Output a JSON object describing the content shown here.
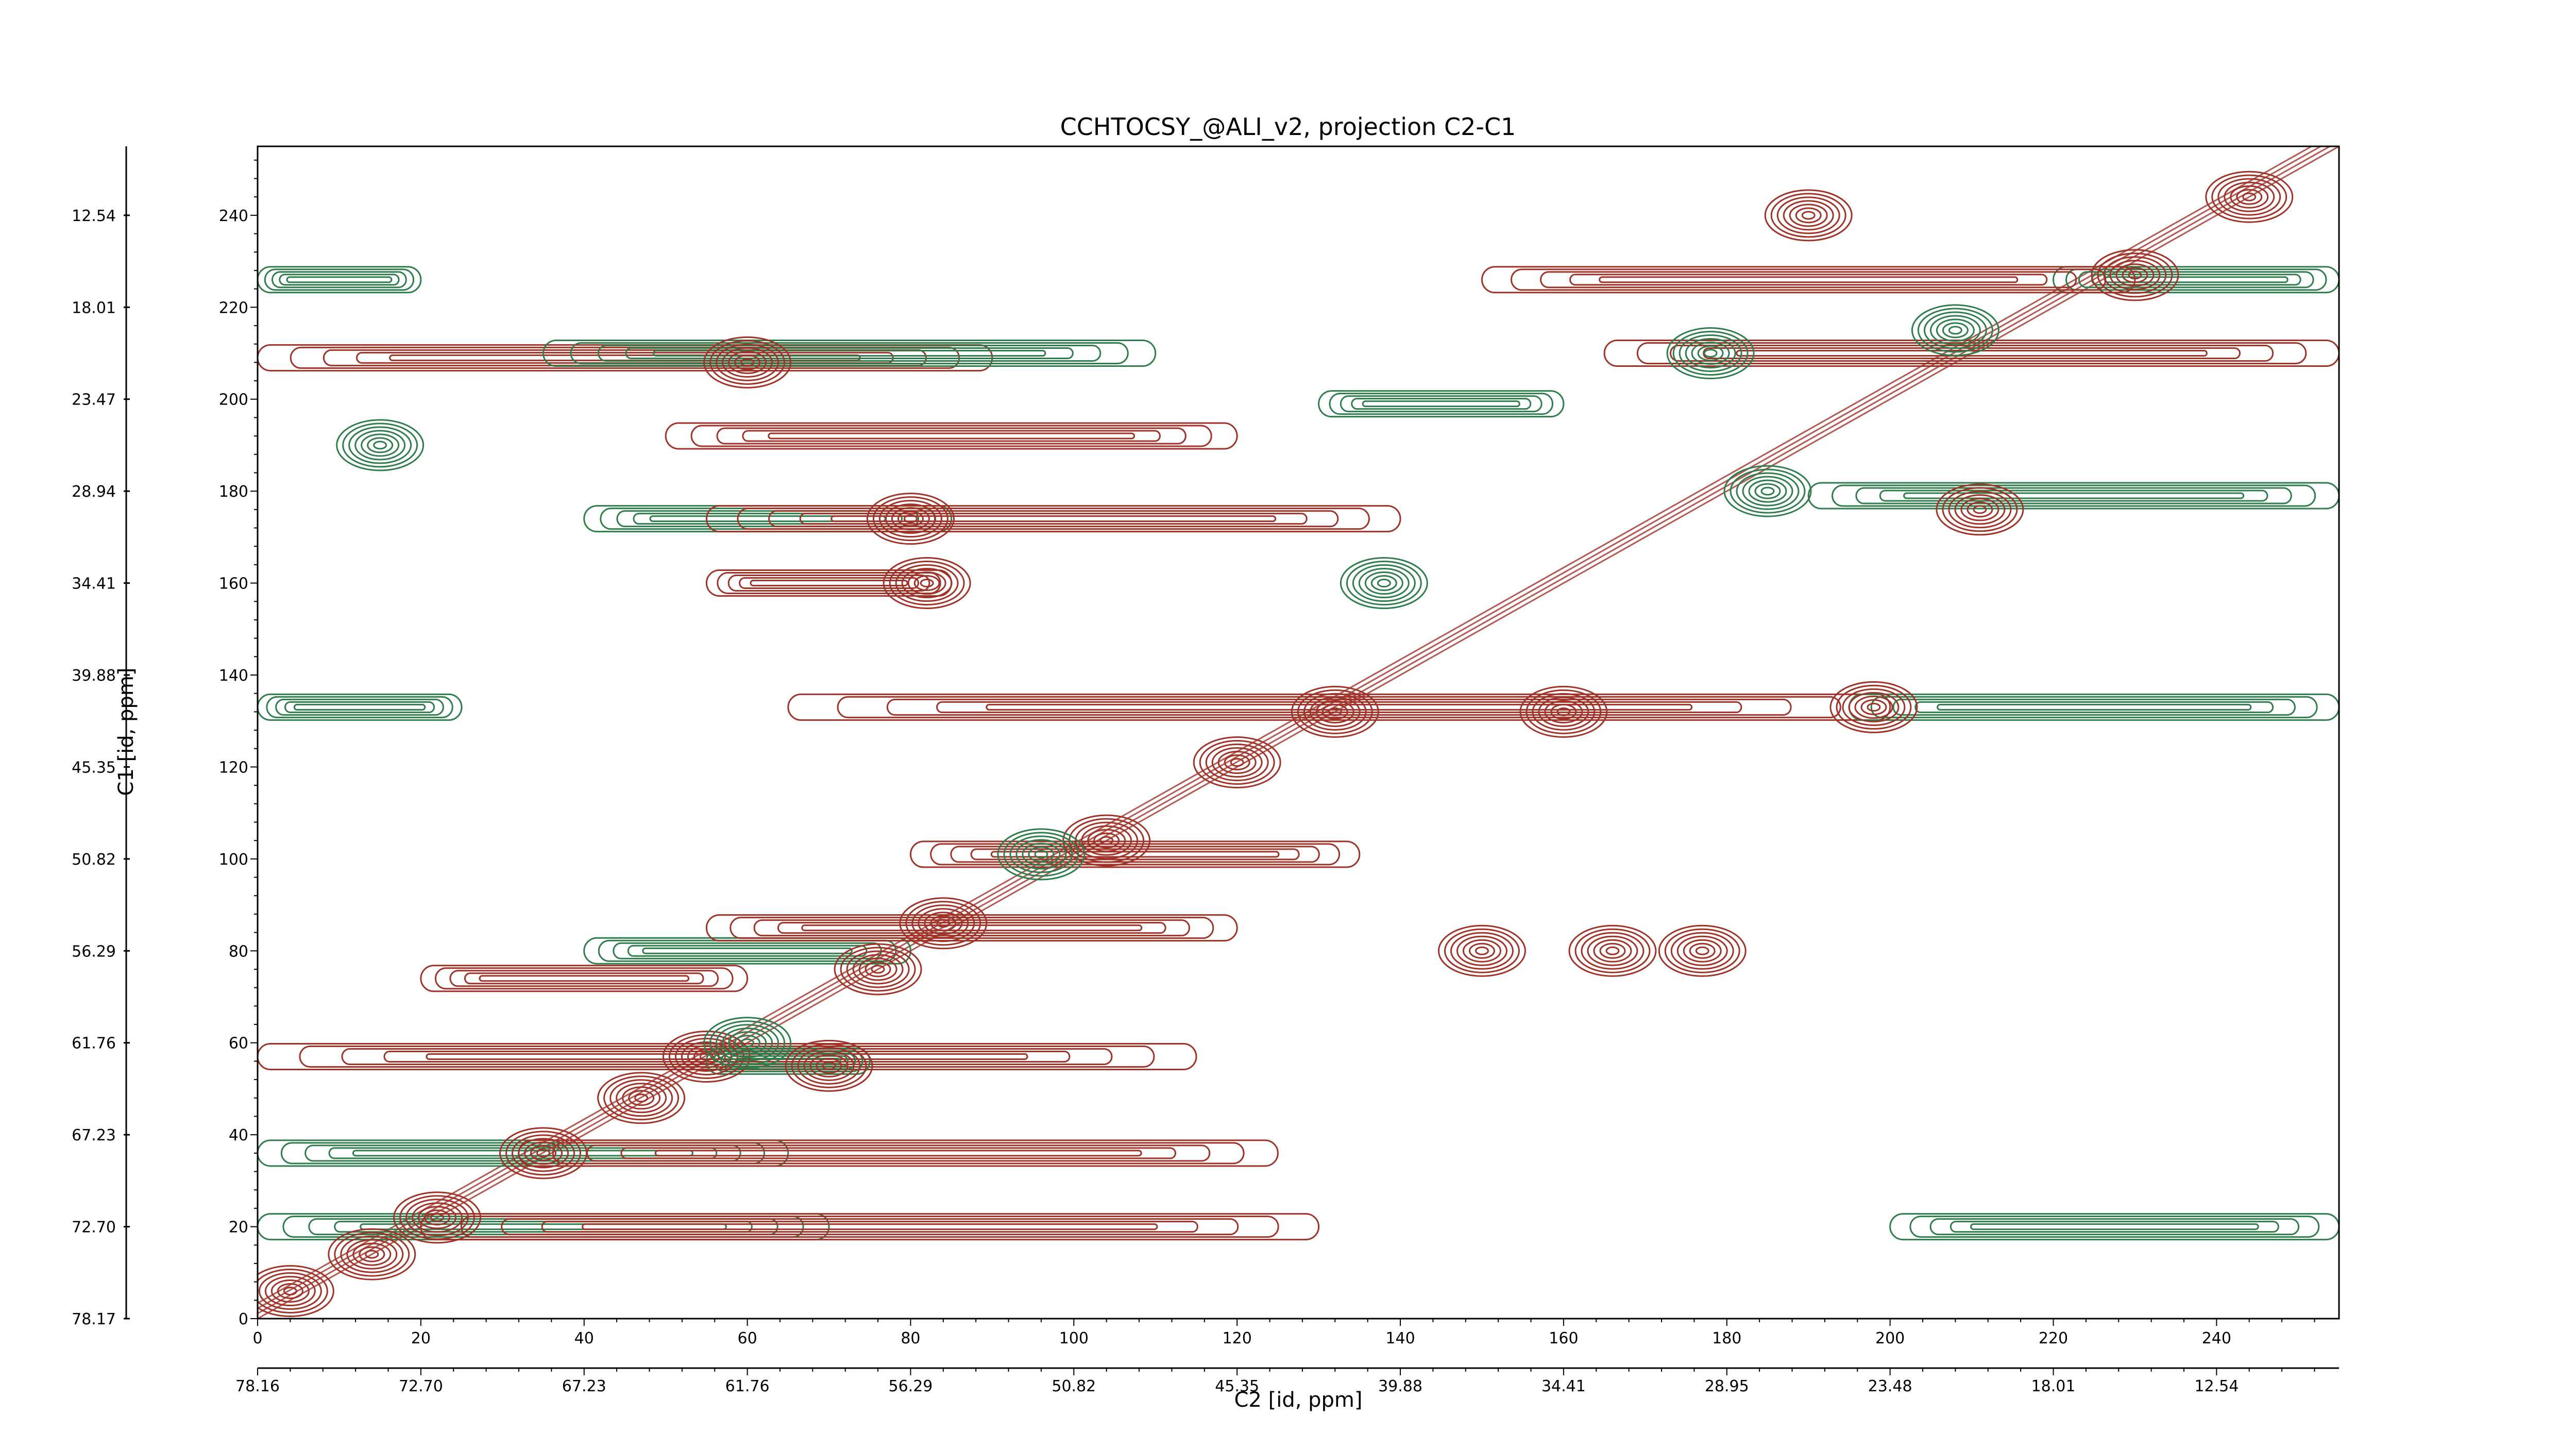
{
  "chart_data": {
    "type": "heatmap",
    "subtype": "contour",
    "title": "CCHTOCSY_@ALI_v2, projection C2-C1",
    "xlabel": "C2 [id, ppm]",
    "ylabel": "C1 [id, ppm]",
    "xlim": [
      0,
      255
    ],
    "ylim": [
      0,
      255
    ],
    "x_index_ticks": [
      "0",
      "20",
      "40",
      "60",
      "80",
      "100",
      "120",
      "140",
      "160",
      "180",
      "200",
      "220",
      "240"
    ],
    "x_index_values": [
      0,
      20,
      40,
      60,
      80,
      100,
      120,
      140,
      160,
      180,
      200,
      220,
      240
    ],
    "x_ppm_ticks": [
      "78.16",
      "72.70",
      "67.23",
      "61.76",
      "56.29",
      "50.82",
      "45.35",
      "39.88",
      "34.41",
      "28.95",
      "23.48",
      "18.01",
      "12.54"
    ],
    "y_index_ticks": [
      "0",
      "20",
      "40",
      "60",
      "80",
      "100",
      "120",
      "140",
      "160",
      "180",
      "200",
      "220",
      "240"
    ],
    "y_index_values": [
      0,
      20,
      40,
      60,
      80,
      100,
      120,
      140,
      160,
      180,
      200,
      220,
      240
    ],
    "y_ppm_ticks": [
      "78.17",
      "72.70",
      "67.23",
      "61.76",
      "56.29",
      "50.82",
      "45.35",
      "39.88",
      "34.41",
      "28.94",
      "23.47",
      "18.01",
      "12.54"
    ],
    "series": [
      {
        "sign": "positive",
        "color": "#a03228"
      },
      {
        "sign": "negative",
        "color": "#2e7d4a"
      }
    ],
    "diagonal": [
      [
        0,
        0
      ],
      [
        255,
        255
      ]
    ],
    "ridges": [
      {
        "y": 20,
        "x0": 0,
        "x1": 70,
        "sign": "negative"
      },
      {
        "y": 20,
        "x0": 20,
        "x1": 130,
        "sign": "positive"
      },
      {
        "y": 20,
        "x0": 200,
        "x1": 255,
        "sign": "negative"
      },
      {
        "y": 36,
        "x0": 0,
        "x1": 65,
        "sign": "negative"
      },
      {
        "y": 36,
        "x0": 32,
        "x1": 125,
        "sign": "positive"
      },
      {
        "y": 57,
        "x0": 0,
        "x1": 115,
        "sign": "positive"
      },
      {
        "y": 56,
        "x0": 55,
        "x1": 75,
        "sign": "negative"
      },
      {
        "y": 74,
        "x0": 20,
        "x1": 60,
        "sign": "positive"
      },
      {
        "y": 80,
        "x0": 40,
        "x1": 80,
        "sign": "negative"
      },
      {
        "y": 85,
        "x0": 55,
        "x1": 120,
        "sign": "positive"
      },
      {
        "y": 101,
        "x0": 80,
        "x1": 135,
        "sign": "positive"
      },
      {
        "y": 133,
        "x0": 0,
        "x1": 25,
        "sign": "negative"
      },
      {
        "y": 133,
        "x0": 65,
        "x1": 200,
        "sign": "positive"
      },
      {
        "y": 133,
        "x0": 195,
        "x1": 255,
        "sign": "negative"
      },
      {
        "y": 160,
        "x0": 55,
        "x1": 85,
        "sign": "positive"
      },
      {
        "y": 174,
        "x0": 40,
        "x1": 85,
        "sign": "negative"
      },
      {
        "y": 174,
        "x0": 55,
        "x1": 140,
        "sign": "positive"
      },
      {
        "y": 179,
        "x0": 190,
        "x1": 255,
        "sign": "negative"
      },
      {
        "y": 192,
        "x0": 50,
        "x1": 120,
        "sign": "positive"
      },
      {
        "y": 199,
        "x0": 130,
        "x1": 160,
        "sign": "negative"
      },
      {
        "y": 209,
        "x0": 0,
        "x1": 90,
        "sign": "positive"
      },
      {
        "y": 210,
        "x0": 35,
        "x1": 110,
        "sign": "negative"
      },
      {
        "y": 210,
        "x0": 165,
        "x1": 255,
        "sign": "positive"
      },
      {
        "y": 226,
        "x0": 0,
        "x1": 20,
        "sign": "negative"
      },
      {
        "y": 226,
        "x0": 220,
        "x1": 255,
        "sign": "negative"
      },
      {
        "y": 226,
        "x0": 150,
        "x1": 230,
        "sign": "positive"
      }
    ],
    "peaks": [
      {
        "x": 4,
        "y": 6,
        "sign": "positive"
      },
      {
        "x": 14,
        "y": 14,
        "sign": "positive"
      },
      {
        "x": 22,
        "y": 22,
        "sign": "positive"
      },
      {
        "x": 35,
        "y": 36,
        "sign": "positive"
      },
      {
        "x": 47,
        "y": 48,
        "sign": "positive"
      },
      {
        "x": 55,
        "y": 57,
        "sign": "positive"
      },
      {
        "x": 70,
        "y": 55,
        "sign": "positive"
      },
      {
        "x": 76,
        "y": 76,
        "sign": "positive"
      },
      {
        "x": 84,
        "y": 86,
        "sign": "positive"
      },
      {
        "x": 104,
        "y": 104,
        "sign": "positive"
      },
      {
        "x": 120,
        "y": 121,
        "sign": "positive"
      },
      {
        "x": 132,
        "y": 132,
        "sign": "positive"
      },
      {
        "x": 160,
        "y": 132,
        "sign": "positive"
      },
      {
        "x": 177,
        "y": 80,
        "sign": "positive"
      },
      {
        "x": 198,
        "y": 133,
        "sign": "positive"
      },
      {
        "x": 211,
        "y": 176,
        "sign": "positive"
      },
      {
        "x": 230,
        "y": 227,
        "sign": "positive"
      },
      {
        "x": 244,
        "y": 244,
        "sign": "positive"
      },
      {
        "x": 80,
        "y": 174,
        "sign": "positive"
      },
      {
        "x": 82,
        "y": 160,
        "sign": "positive"
      },
      {
        "x": 60,
        "y": 208,
        "sign": "positive"
      },
      {
        "x": 190,
        "y": 240,
        "sign": "positive"
      },
      {
        "x": 150,
        "y": 80,
        "sign": "positive"
      },
      {
        "x": 166,
        "y": 80,
        "sign": "positive"
      },
      {
        "x": 96,
        "y": 101,
        "sign": "negative"
      },
      {
        "x": 178,
        "y": 210,
        "sign": "negative"
      },
      {
        "x": 208,
        "y": 215,
        "sign": "negative"
      },
      {
        "x": 138,
        "y": 160,
        "sign": "negative"
      },
      {
        "x": 185,
        "y": 180,
        "sign": "negative"
      },
      {
        "x": 60,
        "y": 60,
        "sign": "negative"
      },
      {
        "x": 15,
        "y": 190,
        "sign": "negative"
      }
    ]
  }
}
